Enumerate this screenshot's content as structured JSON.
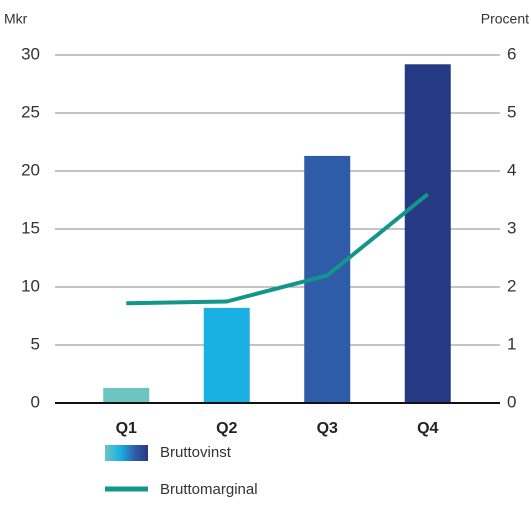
{
  "chart_data": {
    "type": "bar",
    "y_label": "Mkr",
    "y2_label": "Procent",
    "categories": [
      "Q1",
      "Q2",
      "Q3",
      "Q4"
    ],
    "series": [
      {
        "name": "Bruttovinst",
        "type": "bar",
        "colors": [
          "#6cc5c0",
          "#1ab0e3",
          "#2f5ca8",
          "#263a83"
        ],
        "values": [
          1.3,
          8.2,
          21.3,
          29.2
        ]
      },
      {
        "name": "Bruttomarginal",
        "type": "line",
        "color": "#12958a",
        "axis": "y2",
        "values": [
          1.72,
          1.75,
          2.2,
          3.6
        ]
      }
    ],
    "ylim": [
      0,
      30
    ],
    "yticks": [
      0,
      5,
      10,
      15,
      20,
      25,
      30
    ],
    "y2lim": [
      0,
      6
    ],
    "y2ticks": [
      0,
      1,
      2,
      3,
      4,
      5,
      6
    ],
    "grid": true
  }
}
